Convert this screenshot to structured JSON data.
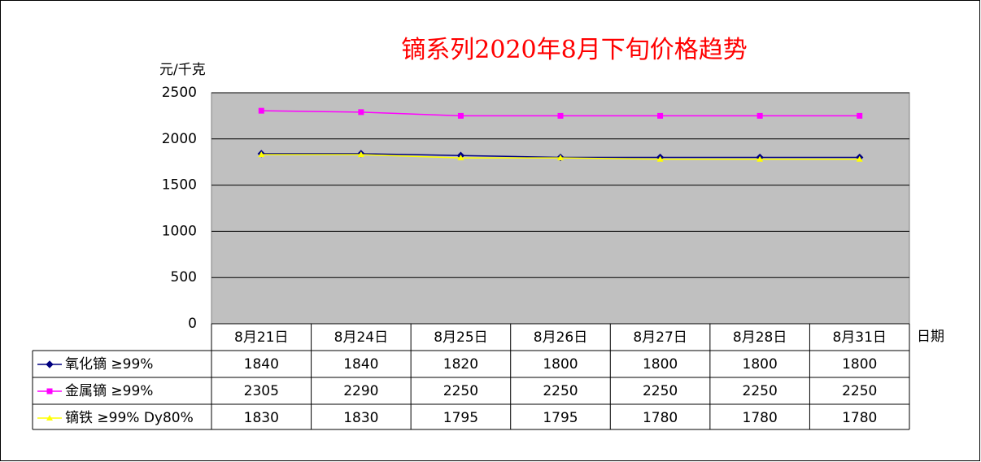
{
  "chart_data": {
    "type": "line",
    "title": "镝系列2020年8月下旬价格趋势",
    "y_label": "元/千克",
    "x_label": "日期",
    "categories": [
      "8月21日",
      "8月24日",
      "8月25日",
      "8月26日",
      "8月27日",
      "8月28日",
      "8月31日"
    ],
    "series": [
      {
        "name": "氧化镝 ≥99%",
        "color": "#000080",
        "marker": "diamond",
        "values": [
          1840,
          1840,
          1820,
          1800,
          1800,
          1800,
          1800
        ]
      },
      {
        "name": "金属镝 ≥99%",
        "color": "#ff00ff",
        "marker": "square",
        "values": [
          2305,
          2290,
          2250,
          2250,
          2250,
          2250,
          2250
        ]
      },
      {
        "name": "镝铁 ≥99% Dy80%",
        "color": "#ffff00",
        "marker": "triangle",
        "values": [
          1830,
          1830,
          1795,
          1795,
          1780,
          1780,
          1780
        ]
      }
    ],
    "ylim": [
      0,
      2500
    ],
    "yticks": [
      0,
      500,
      1000,
      1500,
      2000,
      2500
    ],
    "grid": true,
    "plot_background": "#c0c0c0"
  }
}
